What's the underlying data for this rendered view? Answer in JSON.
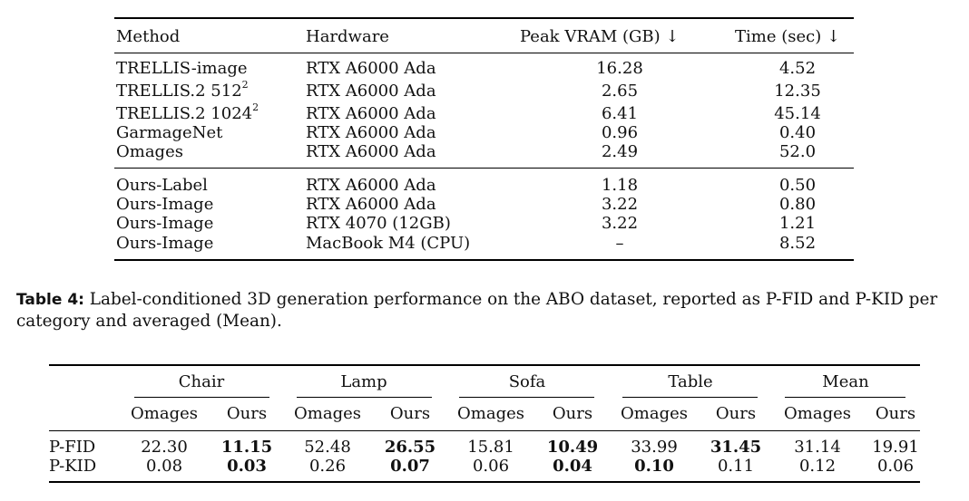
{
  "table_top": {
    "headers": {
      "method": "Method",
      "hardware": "Hardware",
      "vram": "Peak VRAM (GB) ↓",
      "time": "Time (sec) ↓"
    },
    "group1": [
      {
        "method": "TRELLIS-image",
        "method_sup": "",
        "hardware": "RTX A6000 Ada",
        "vram": "16.28",
        "time": "4.52"
      },
      {
        "method": "TRELLIS.2 512",
        "method_sup": "2",
        "hardware": "RTX A6000 Ada",
        "vram": "2.65",
        "time": "12.35"
      },
      {
        "method": "TRELLIS.2 1024",
        "method_sup": "2",
        "hardware": "RTX A6000 Ada",
        "vram": "6.41",
        "time": "45.14"
      },
      {
        "method": "GarmageNet",
        "method_sup": "",
        "hardware": "RTX A6000 Ada",
        "vram": "0.96",
        "time": "0.40"
      },
      {
        "method": "Omages",
        "method_sup": "",
        "hardware": "RTX A6000 Ada",
        "vram": "2.49",
        "time": "52.0"
      }
    ],
    "group2": [
      {
        "method": "Ours-Label",
        "method_sup": "",
        "hardware": "RTX A6000 Ada",
        "vram": "1.18",
        "time": "0.50"
      },
      {
        "method": "Ours-Image",
        "method_sup": "",
        "hardware": "RTX A6000 Ada",
        "vram": "3.22",
        "time": "0.80"
      },
      {
        "method": "Ours-Image",
        "method_sup": "",
        "hardware": "RTX 4070 (12GB)",
        "vram": "3.22",
        "time": "1.21"
      },
      {
        "method": "Ours-Image",
        "method_sup": "",
        "hardware": "MacBook M4 (CPU)",
        "vram": "–",
        "time": "8.52"
      }
    ]
  },
  "caption": {
    "label": "Table 4:",
    "text": " Label-conditioned 3D generation performance on the ABO dataset, reported as P-FID and P-KID per category and averaged (Mean)."
  },
  "table_bottom": {
    "groups": [
      "Chair",
      "Lamp",
      "Sofa",
      "Table",
      "Mean"
    ],
    "subheaders": [
      "Omages",
      "Ours"
    ],
    "rows": [
      {
        "label": "P-FID",
        "values": [
          "22.30",
          "11.15",
          "52.48",
          "26.55",
          "15.81",
          "10.49",
          "33.99",
          "31.45",
          "31.14",
          "19.91"
        ],
        "bold": [
          false,
          true,
          false,
          true,
          false,
          true,
          false,
          true,
          false,
          false
        ]
      },
      {
        "label": "P-KID",
        "values": [
          "0.08",
          "0.03",
          "0.26",
          "0.07",
          "0.06",
          "0.04",
          "0.10",
          "0.11",
          "0.12",
          "0.06"
        ],
        "bold": [
          false,
          true,
          false,
          true,
          false,
          true,
          true,
          false,
          false,
          false
        ]
      }
    ]
  }
}
